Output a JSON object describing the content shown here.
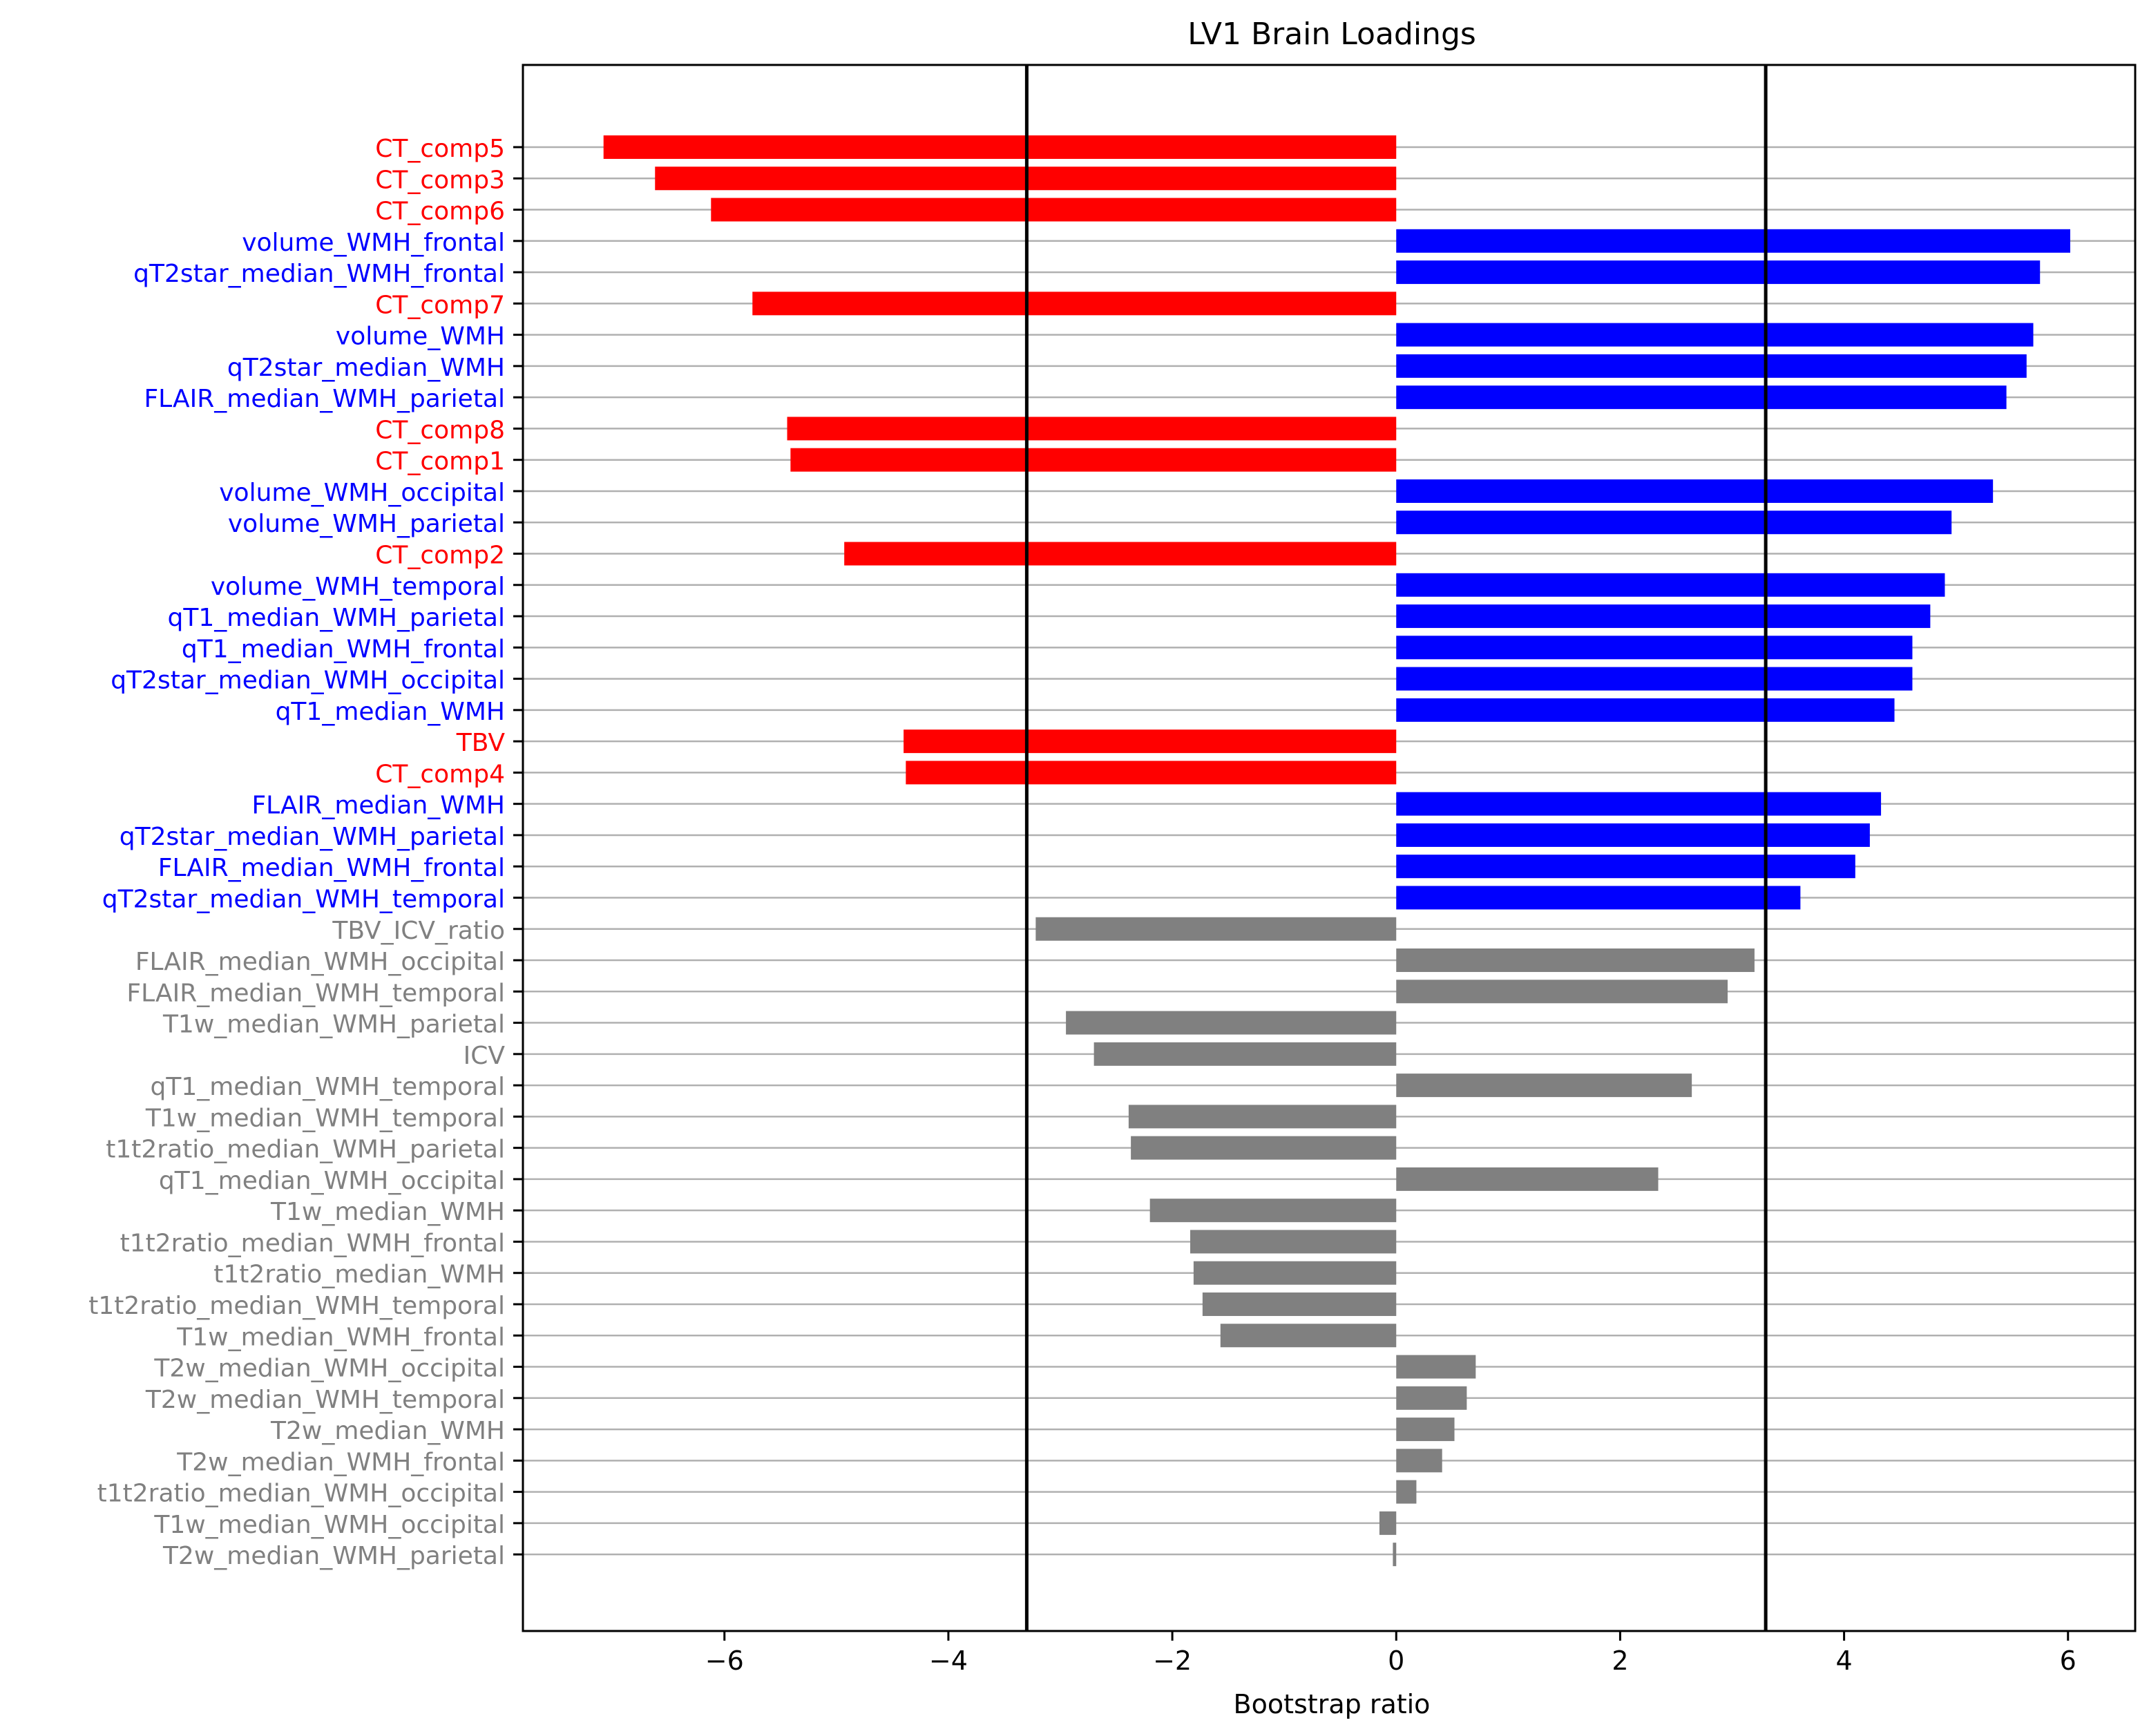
{
  "chart_data": {
    "type": "bar",
    "orientation": "horizontal",
    "title": "LV1 Brain Loadings",
    "xlabel": "Bootstrap ratio",
    "ylabel": "",
    "xlim": [
      -7.8,
      6.6
    ],
    "xticks": [
      -6,
      -4,
      -2,
      0,
      2,
      4,
      6
    ],
    "threshold_lines": [
      -3.3,
      3.3
    ],
    "grid": "horizontal lines at each category",
    "colors": {
      "negative_significant": "#ff0000",
      "positive_significant": "#0000ff",
      "not_significant": "#808080",
      "threshold": "#000000",
      "grid": "#b0b0b0"
    },
    "categories": [
      "CT_comp5",
      "CT_comp3",
      "CT_comp6",
      "volume_WMH_frontal",
      "qT2star_median_WMH_frontal",
      "CT_comp7",
      "volume_WMH",
      "qT2star_median_WMH",
      "FLAIR_median_WMH_parietal",
      "CT_comp8",
      "CT_comp1",
      "volume_WMH_occipital",
      "volume_WMH_parietal",
      "CT_comp2",
      "volume_WMH_temporal",
      "qT1_median_WMH_parietal",
      "qT1_median_WMH_frontal",
      "qT2star_median_WMH_occipital",
      "qT1_median_WMH",
      "TBV",
      "CT_comp4",
      "FLAIR_median_WMH",
      "qT2star_median_WMH_parietal",
      "FLAIR_median_WMH_frontal",
      "qT2star_median_WMH_temporal",
      "TBV_ICV_ratio",
      "FLAIR_median_WMH_occipital",
      "FLAIR_median_WMH_temporal",
      "T1w_median_WMH_parietal",
      "ICV",
      "qT1_median_WMH_temporal",
      "T1w_median_WMH_temporal",
      "t1t2ratio_median_WMH_parietal",
      "qT1_median_WMH_occipital",
      "T1w_median_WMH",
      "t1t2ratio_median_WMH_frontal",
      "t1t2ratio_median_WMH",
      "t1t2ratio_median_WMH_temporal",
      "T1w_median_WMH_frontal",
      "T2w_median_WMH_occipital",
      "T2w_median_WMH_temporal",
      "T2w_median_WMH",
      "T2w_median_WMH_frontal",
      "t1t2ratio_median_WMH_occipital",
      "T1w_median_WMH_occipital",
      "T2w_median_WMH_parietal"
    ],
    "values": [
      -7.08,
      -6.62,
      -6.12,
      6.02,
      5.75,
      -5.75,
      5.69,
      5.63,
      5.45,
      -5.44,
      -5.41,
      5.33,
      4.96,
      -4.93,
      4.9,
      4.77,
      4.61,
      4.61,
      4.45,
      -4.4,
      -4.38,
      4.33,
      4.23,
      4.1,
      3.61,
      -3.22,
      3.2,
      2.96,
      -2.95,
      -2.7,
      2.64,
      -2.39,
      -2.37,
      2.34,
      -2.2,
      -1.84,
      -1.81,
      -1.73,
      -1.57,
      0.71,
      0.63,
      0.52,
      0.41,
      0.18,
      -0.15,
      -0.03
    ],
    "series_color_class": [
      "neg",
      "neg",
      "neg",
      "pos",
      "pos",
      "neg",
      "pos",
      "pos",
      "pos",
      "neg",
      "neg",
      "pos",
      "pos",
      "neg",
      "pos",
      "pos",
      "pos",
      "pos",
      "pos",
      "neg",
      "neg",
      "pos",
      "pos",
      "pos",
      "pos",
      "ns",
      "ns",
      "ns",
      "ns",
      "ns",
      "ns",
      "ns",
      "ns",
      "ns",
      "ns",
      "ns",
      "ns",
      "ns",
      "ns",
      "ns",
      "ns",
      "ns",
      "ns",
      "ns",
      "ns",
      "ns"
    ]
  }
}
